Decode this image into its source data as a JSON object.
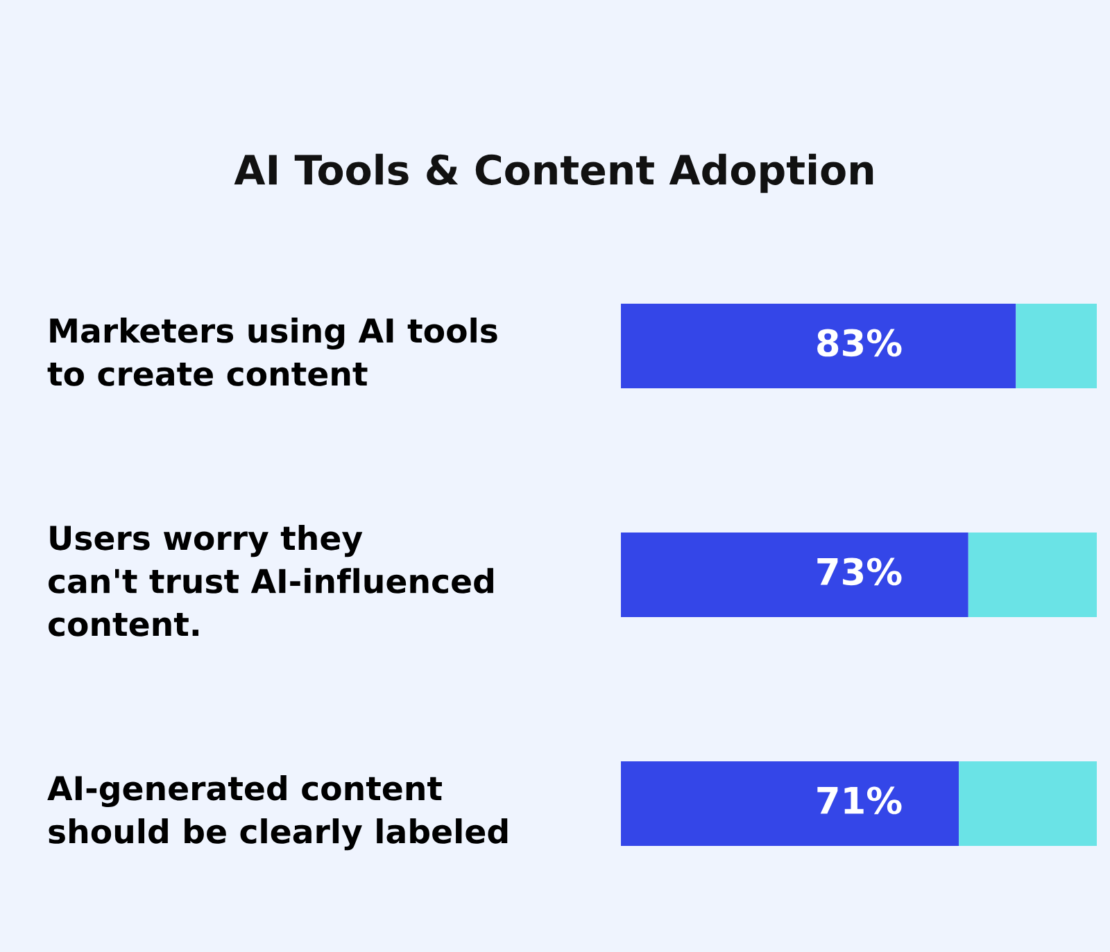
{
  "chart_data": {
    "type": "bar",
    "orientation": "horizontal",
    "stacked": true,
    "title": "AI Tools & Content Adoption",
    "categories": [
      "Marketers using AI tools\nto create content",
      "Users worry they\ncan't trust AI-influenced\ncontent.",
      "AI-generated content\nshould be clearly labeled"
    ],
    "series": [
      {
        "color": "#3446e8",
        "values": [
          83,
          73,
          71
        ],
        "value_labels": [
          "83%",
          "73%",
          "71%"
        ]
      },
      {
        "color": "#6ae3e6",
        "values": [
          17,
          27,
          29
        ]
      }
    ],
    "xlim": [
      0,
      100
    ],
    "grid": false,
    "legend": false,
    "tick_labels": "y"
  }
}
